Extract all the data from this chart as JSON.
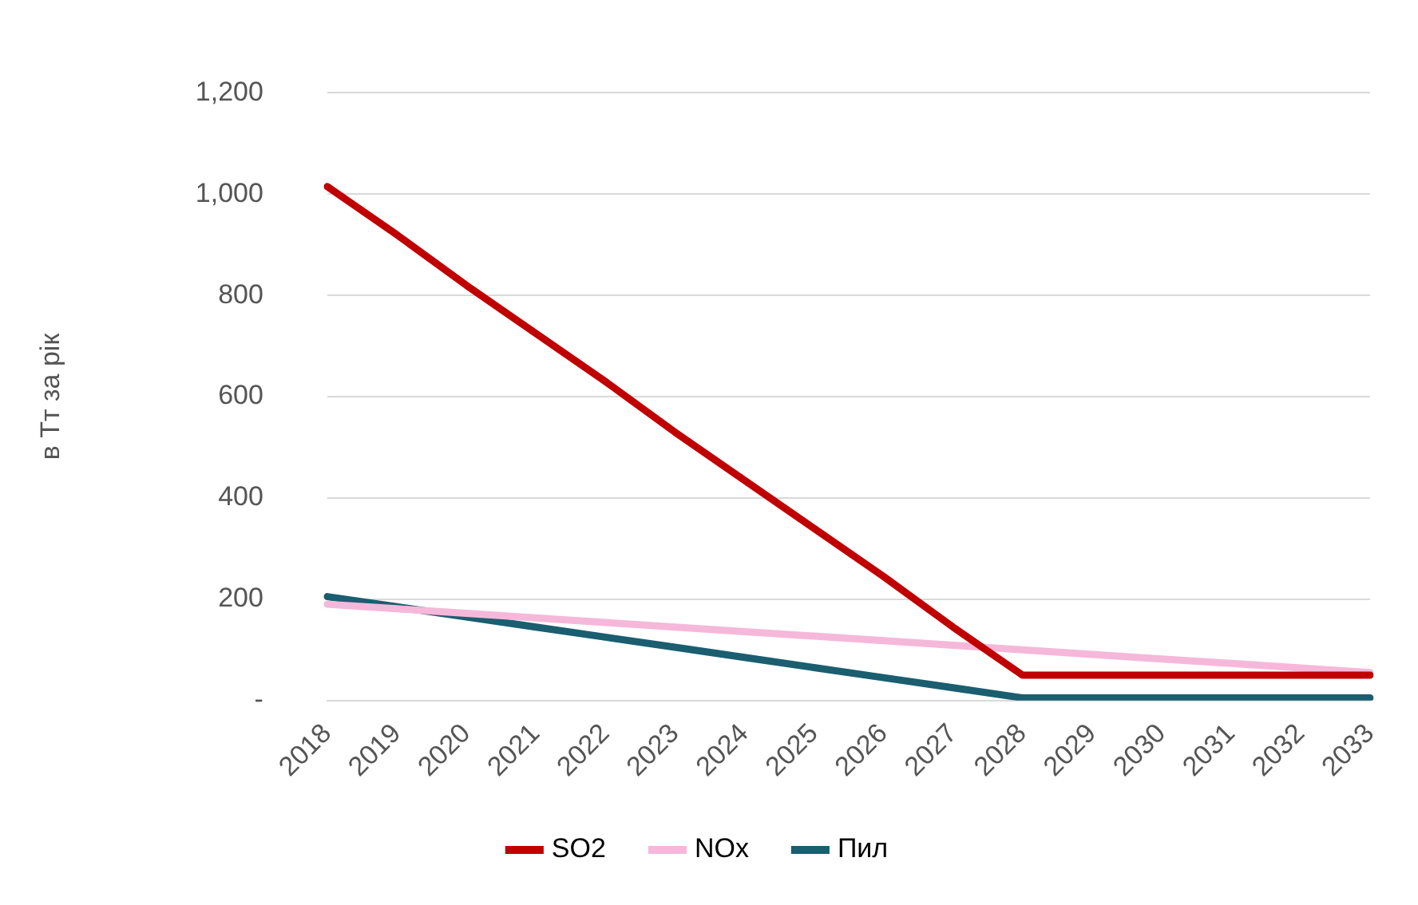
{
  "chart_data": {
    "type": "line",
    "ylabel": "в Тт за рік",
    "categories": [
      "2018",
      "2019",
      "2020",
      "2021",
      "2022",
      "2023",
      "2024",
      "2025",
      "2026",
      "2027",
      "2028",
      "2029",
      "2030",
      "2031",
      "2032",
      "2033"
    ],
    "series": [
      {
        "name": "SO2",
        "color": "#c00000",
        "values": [
          1015,
          920,
          820,
          725,
          630,
          530,
          435,
          340,
          245,
          145,
          50,
          50,
          50,
          50,
          50,
          50
        ]
      },
      {
        "name": "NOx",
        "color": "#f5b8da",
        "values": [
          190,
          181,
          172,
          163,
          154,
          145,
          136,
          127,
          118,
          109,
          100,
          91,
          82,
          73,
          64,
          55
        ]
      },
      {
        "name": "Пил",
        "color": "#1a5e70",
        "values": [
          205,
          185,
          165,
          145,
          125,
          105,
          85,
          65,
          45,
          25,
          5,
          5,
          5,
          5,
          5,
          5
        ]
      }
    ],
    "ylim": [
      0,
      1200
    ],
    "yticks": [
      {
        "value": 0,
        "label": "-"
      },
      {
        "value": 200,
        "label": "200"
      },
      {
        "value": 400,
        "label": "400"
      },
      {
        "value": 600,
        "label": "600"
      },
      {
        "value": 800,
        "label": "800"
      },
      {
        "value": 1000,
        "label": "1,000"
      },
      {
        "value": 1200,
        "label": "1,200"
      }
    ],
    "grid": "y",
    "legend": "bottom",
    "marker": "none",
    "line_style": "solid"
  }
}
